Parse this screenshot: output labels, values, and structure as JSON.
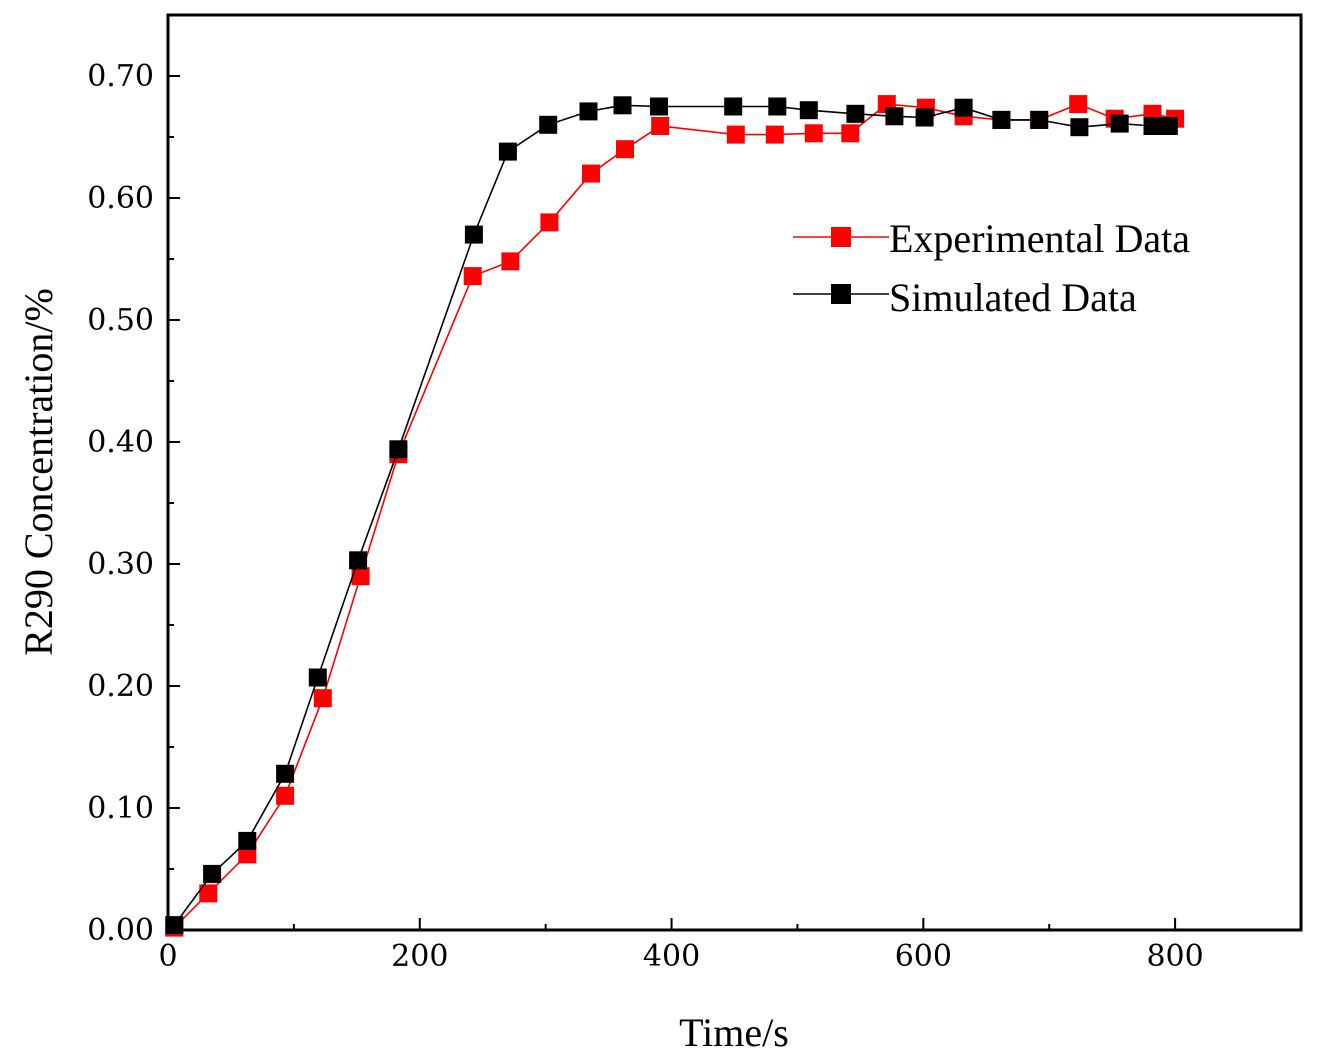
{
  "colors": {
    "experimental": "#ff0000",
    "simulated": "#000000"
  },
  "chart_data": {
    "type": "line",
    "title": "",
    "xlabel": "Time/s",
    "ylabel": "R290 Concentration/%",
    "xlim": [
      0,
      900
    ],
    "ylim": [
      0,
      0.75
    ],
    "xticks": [
      0,
      200,
      400,
      600,
      800
    ],
    "xtick_labels": [
      "0",
      "200",
      "400",
      "600",
      "800"
    ],
    "yticks": [
      0,
      0.1,
      0.2,
      0.3,
      0.4,
      0.5,
      0.6,
      0.7
    ],
    "ytick_labels": [
      "0.00",
      "0.10",
      "0.20",
      "0.30",
      "0.40",
      "0.50",
      "0.60",
      "0.70"
    ],
    "legend_position": "upper-right-inside",
    "series": [
      {
        "name": "Experimental Data",
        "color": "#ff0000",
        "marker": "square",
        "x": [
          5,
          32,
          63,
          93,
          123,
          153,
          183,
          242,
          272,
          303,
          336,
          363,
          391,
          451,
          482,
          513,
          542,
          571,
          602,
          632,
          662,
          692,
          723,
          752,
          782,
          800
        ],
        "y": [
          0.002,
          0.03,
          0.062,
          0.11,
          0.19,
          0.29,
          0.39,
          0.536,
          0.548,
          0.58,
          0.62,
          0.64,
          0.659,
          0.652,
          0.652,
          0.653,
          0.653,
          0.677,
          0.674,
          0.667,
          0.664,
          0.664,
          0.677,
          0.665,
          0.669,
          0.665
        ]
      },
      {
        "name": "Simulated Data",
        "color": "#000000",
        "marker": "square",
        "x": [
          5,
          35,
          63,
          93,
          119,
          151,
          183,
          243,
          270,
          302,
          334,
          361,
          390,
          449,
          484,
          509,
          546,
          577,
          601,
          632,
          662,
          692,
          724,
          756,
          782,
          795
        ],
        "y": [
          0.004,
          0.046,
          0.073,
          0.128,
          0.207,
          0.303,
          0.394,
          0.57,
          0.638,
          0.66,
          0.671,
          0.676,
          0.675,
          0.675,
          0.675,
          0.672,
          0.669,
          0.667,
          0.666,
          0.674,
          0.664,
          0.664,
          0.658,
          0.661,
          0.659,
          0.659
        ]
      }
    ]
  }
}
